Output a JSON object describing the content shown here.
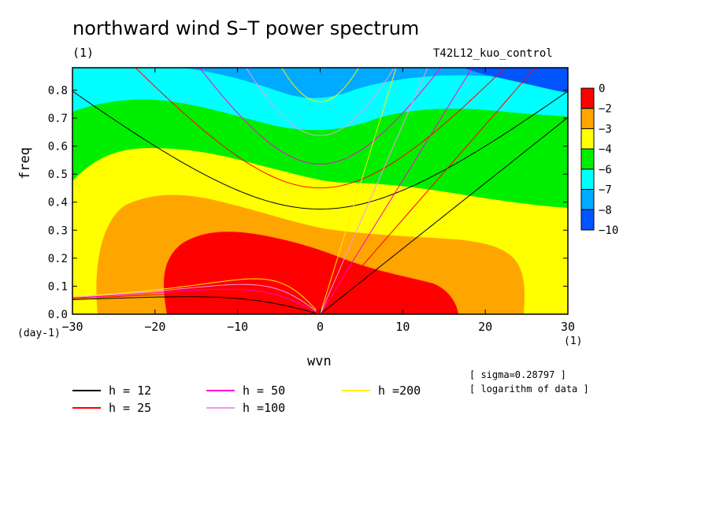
{
  "chart_data": {
    "type": "heatmap",
    "title": "northward wind S–T power spectrum",
    "subtitle_left": "(1)",
    "subtitle_right": "T42L12_kuo_control",
    "xlabel": "wvn",
    "xlabel_unit": "(1)",
    "ylabel": "freq",
    "ylabel_unit": "(day-1)",
    "xlim": [
      -30,
      30
    ],
    "ylim": [
      0,
      0.88
    ],
    "xticks": [
      -30,
      -20,
      -10,
      0,
      10,
      20,
      30
    ],
    "xtick_labels": [
      "−30",
      "−20",
      "−10",
      "0",
      "10",
      "20",
      "30"
    ],
    "yticks": [
      0.0,
      0.1,
      0.2,
      0.3,
      0.4,
      0.5,
      0.6,
      0.7,
      0.8
    ],
    "ytick_labels": [
      "0.0",
      "0.1",
      "0.2",
      "0.3",
      "0.4",
      "0.5",
      "0.6",
      "0.7",
      "0.8"
    ],
    "colorbar": {
      "levels": [
        "0",
        "−2",
        "−3",
        "−4",
        "−6",
        "−7",
        "−8",
        "−10"
      ],
      "colors": [
        "#ff0000",
        "#ffa500",
        "#ffff00",
        "#00ee00",
        "#00ffff",
        "#00aaff",
        "#0055ff"
      ]
    },
    "fill_colors": {
      "lowest": "#0055ff",
      "level_8": "#00aaff",
      "level_7": "#00ffff",
      "level_6": "#00ee00",
      "level_4": "#ffff00",
      "level_3": "#ffa500",
      "level_2": "#ff0000"
    },
    "dispersion_curves": [
      {
        "label": "h = 12",
        "color": "#000000"
      },
      {
        "label": "h = 25",
        "color": "#ff0000"
      },
      {
        "label": "h = 50",
        "color": "#ff00cc"
      },
      {
        "label": "h =100",
        "color": "#ee99ee"
      },
      {
        "label": "h =200",
        "color": "#ffee00"
      }
    ],
    "notes": [
      "[ sigma=0.28797 ]",
      "[ logarithm of data ]"
    ]
  }
}
